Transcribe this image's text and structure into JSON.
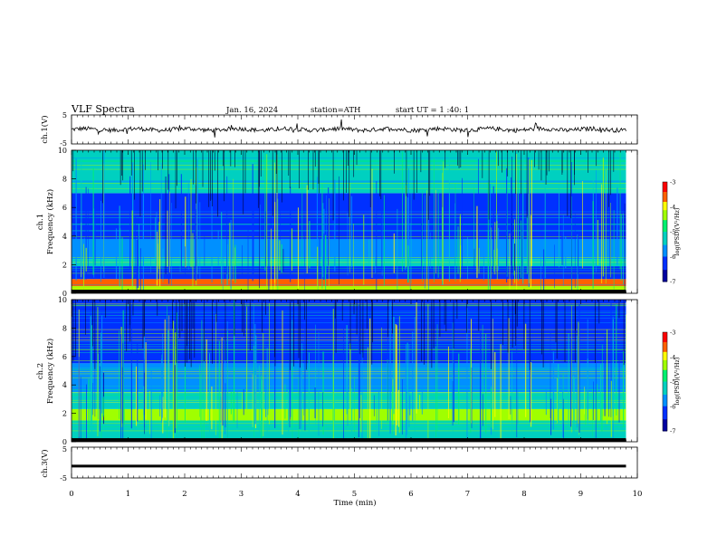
{
  "header": {
    "title": "VLF  Spectra",
    "date": "Jan. 16, 2024",
    "station": "station=ATH",
    "start": "start  UT  =   1 :40: 1"
  },
  "colors": {
    "trace": "#000000",
    "colormap": [
      "#000000",
      "#000080",
      "#0000ff",
      "#0080ff",
      "#00c8c8",
      "#00ff80",
      "#80ff00",
      "#ffff00",
      "#ff8000",
      "#ff0000",
      "#ff8080",
      "#ffffff"
    ]
  },
  "chart_data": [
    {
      "type": "line",
      "name": "ch1-waveform",
      "ylabel": "ch.1(V)",
      "ylim": [
        -5,
        5
      ],
      "yticks": [
        "5",
        "-5"
      ],
      "xlim": [
        0,
        10
      ],
      "baseline_v": 0,
      "description_values": "noisy trace near 0 V with spikes"
    },
    {
      "type": "heatmap",
      "name": "ch1-spectrogram",
      "ylabel_top": "ch.1",
      "ylabel": "Frequency  (kHz)",
      "ylim": [
        0,
        10
      ],
      "yticks": [
        "0",
        "2",
        "4",
        "6",
        "8",
        "10"
      ],
      "xlim": [
        0,
        9.8
      ],
      "colorbar": {
        "label": "log(PSD)(V²/Hz)",
        "range": [
          -7,
          -3
        ],
        "ticks": [
          "-3",
          "-4",
          "-5",
          "-6",
          "-7"
        ]
      },
      "bands_khz": [
        {
          "f0": 0.0,
          "f1": 0.5,
          "level": -4.3
        },
        {
          "f0": 0.5,
          "f1": 1.0,
          "level": -3.6
        },
        {
          "f0": 1.0,
          "f1": 1.9,
          "level": -6.3
        },
        {
          "f0": 1.9,
          "f1": 2.4,
          "level": -5.4
        },
        {
          "f0": 2.4,
          "f1": 3.8,
          "level": -5.9
        },
        {
          "f0": 3.8,
          "f1": 5.0,
          "level": -6.5
        },
        {
          "f0": 5.0,
          "f1": 7.0,
          "level": -6.0
        },
        {
          "f0": 7.0,
          "f1": 10.0,
          "level": -5.2
        }
      ]
    },
    {
      "type": "heatmap",
      "name": "ch2-spectrogram",
      "ylabel_top": "ch.2",
      "ylabel": "Frequency  (kHz)",
      "ylim": [
        0,
        10
      ],
      "yticks": [
        "0",
        "2",
        "4",
        "6",
        "8",
        "10"
      ],
      "xlim": [
        0,
        9.8
      ],
      "colorbar": {
        "label": "log(PSD)(V²/Hz)",
        "range": [
          -7,
          -3
        ],
        "ticks": [
          "-3",
          "-4",
          "-5",
          "-6",
          "-7"
        ]
      },
      "bands_khz": [
        {
          "f0": 0.0,
          "f1": 1.5,
          "level": -5.0
        },
        {
          "f0": 1.5,
          "f1": 2.3,
          "level": -4.4
        },
        {
          "f0": 2.3,
          "f1": 3.5,
          "level": -5.3
        },
        {
          "f0": 3.5,
          "f1": 5.5,
          "level": -5.9
        },
        {
          "f0": 5.5,
          "f1": 10.0,
          "level": -6.2
        }
      ]
    },
    {
      "type": "line",
      "name": "ch3-waveform",
      "ylabel": "ch.3(V)",
      "ylim": [
        -5,
        5
      ],
      "yticks": [
        "5",
        "-5"
      ],
      "xlim": [
        0,
        9.8
      ],
      "baseline_v": -1.3
    }
  ],
  "xaxis": {
    "label": "Time  (min)",
    "ticks": [
      "0",
      "1",
      "2",
      "3",
      "4",
      "5",
      "6",
      "7",
      "8",
      "9",
      "10"
    ],
    "range": [
      0,
      10
    ]
  }
}
